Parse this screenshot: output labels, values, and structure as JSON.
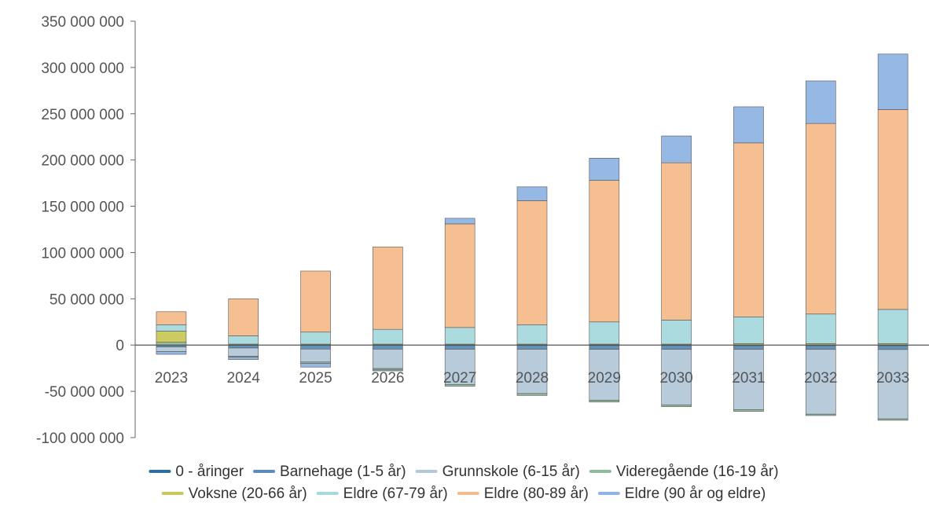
{
  "chart_data": {
    "type": "bar",
    "stacked": true,
    "title": "",
    "xlabel": "",
    "ylabel": "",
    "ylim": [
      -100000000,
      350000000
    ],
    "yticks": [
      -100000000,
      -50000000,
      0,
      50000000,
      100000000,
      150000000,
      200000000,
      250000000,
      300000000,
      350000000
    ],
    "ytick_labels": [
      "-100 000 000",
      "-50 000 000",
      "0",
      "50 000 000",
      "100 000 000",
      "150 000 000",
      "200 000 000",
      "250 000 000",
      "300 000 000",
      "350 000 000"
    ],
    "categories": [
      "2023",
      "2024",
      "2025",
      "2026",
      "2027",
      "2028",
      "2029",
      "2030",
      "2031",
      "2032",
      "2033"
    ],
    "grid": false,
    "legend_position": "bottom",
    "series": [
      {
        "name": "0 - åringer",
        "color": "#2e6e9e",
        "values": [
          0,
          -200000,
          -300000,
          -400000,
          -500000,
          -500000,
          -600000,
          -600000,
          -700000,
          -700000,
          -800000
        ]
      },
      {
        "name": "Barnehage (1-5 år)",
        "color": "#5b8db8",
        "values": [
          -2000000,
          -3000000,
          -4000000,
          -4000000,
          -4000000,
          -4000000,
          -4000000,
          -4000000,
          -4000000,
          -4000000,
          -4000000
        ]
      },
      {
        "name": "Grunnskole (6-15 år)",
        "color": "#b3c8d9",
        "values": [
          -5000000,
          -9000000,
          -14000000,
          -21000000,
          -38000000,
          -48000000,
          -55000000,
          -60000000,
          -65000000,
          -70000000,
          -75000000
        ]
      },
      {
        "name": "Videregående (16-19 år)",
        "color": "#8fbc99",
        "values": [
          3000000,
          -1000000,
          -1500000,
          -1500000,
          -2000000,
          -2000000,
          -2000000,
          -2000000,
          -2000000,
          -1500000,
          -1500000
        ]
      },
      {
        "name": "Voksne (20-66 år)",
        "color": "#c8c85a",
        "values": [
          12000000,
          1000000,
          1000000,
          1000000,
          1000000,
          1000000,
          1000000,
          1000000,
          1500000,
          1500000,
          1500000
        ]
      },
      {
        "name": "Eldre (67-79 år)",
        "color": "#a6d9dc",
        "values": [
          7000000,
          9000000,
          13000000,
          16000000,
          18000000,
          21000000,
          24000000,
          26000000,
          29000000,
          32000000,
          37000000
        ]
      },
      {
        "name": "Eldre (80-89 år)",
        "color": "#f4bc8c",
        "values": [
          14000000,
          40000000,
          66000000,
          89000000,
          112000000,
          134000000,
          153000000,
          170000000,
          188000000,
          206000000,
          216000000
        ]
      },
      {
        "name": "Eldre (90 år og eldre)",
        "color": "#8fb4e3",
        "values": [
          -3000000,
          -2500000,
          -4000000,
          -1000000,
          6000000,
          15000000,
          24000000,
          29000000,
          39000000,
          46000000,
          60000000
        ]
      }
    ]
  }
}
